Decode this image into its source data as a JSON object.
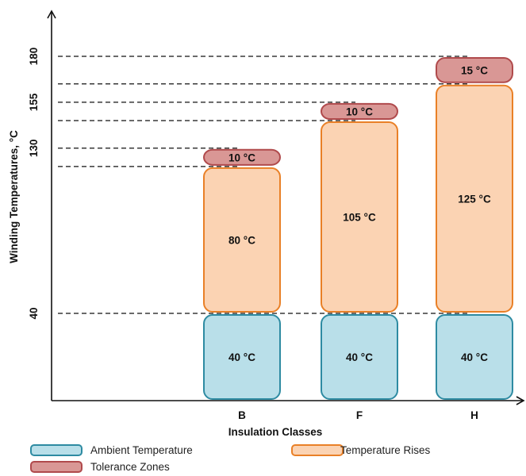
{
  "chart_data": {
    "type": "bar",
    "stacked": true,
    "title": "",
    "xlabel": "Insulation Classes",
    "ylabel": "Winding Temperatures, °C",
    "categories": [
      "B",
      "F",
      "H"
    ],
    "y_ticks": [
      "40",
      "130",
      "155",
      "180"
    ],
    "ylim": [
      0,
      190
    ],
    "grid": false,
    "legend_position": "bottom",
    "series": [
      {
        "name": "Ambient Temperature",
        "values": [
          40,
          40,
          40
        ],
        "labels": [
          "40 °C",
          "40 °C",
          "40 °C"
        ],
        "fill": "#b9dfe9",
        "stroke": "#2e8ba2"
      },
      {
        "name": "Temperature Rises",
        "values": [
          80,
          105,
          125
        ],
        "labels": [
          "80 °C",
          "105 °C",
          "125 °C"
        ],
        "fill": "#fbd3b3",
        "stroke": "#e98027"
      },
      {
        "name": "Tolerance Zones",
        "values": [
          10,
          10,
          15
        ],
        "labels": [
          "10 °C",
          "10 °C",
          "15 °C"
        ],
        "fill": "#d99795",
        "stroke": "#b04a4c"
      }
    ],
    "legend": [
      {
        "label": "Ambient Temperature",
        "fill": "#b9dfe9",
        "stroke": "#2e8ba2"
      },
      {
        "label": "Temperature Rises",
        "fill": "#fbd3b3",
        "stroke": "#e98027"
      },
      {
        "label": "Tolerance Zones",
        "fill": "#d99795",
        "stroke": "#b04a4c"
      }
    ]
  }
}
